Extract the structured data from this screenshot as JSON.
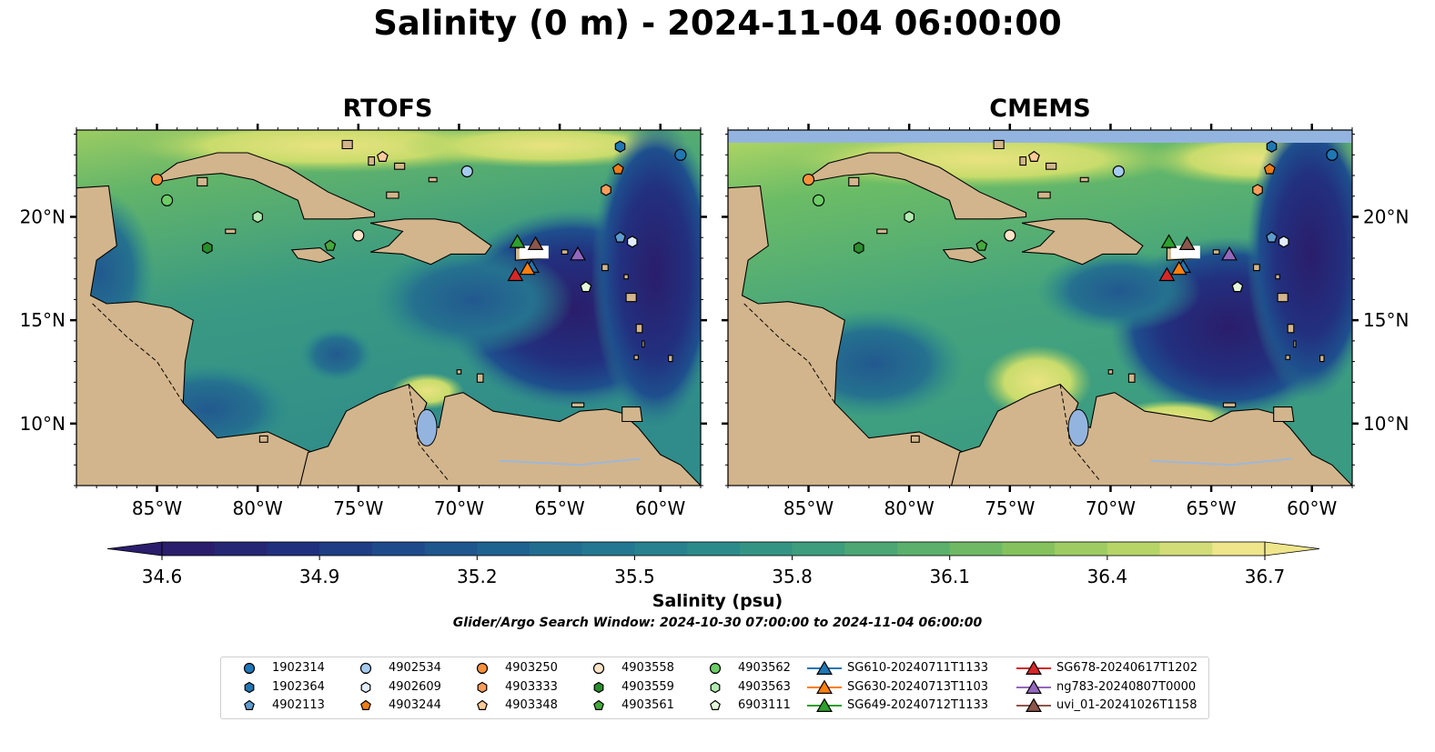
{
  "title": "Salinity (0 m) - 2024-11-04 06:00:00",
  "colorbar": {
    "label": "Salinity (psu)",
    "ticks": [
      "34.6",
      "34.9",
      "35.2",
      "35.5",
      "35.8",
      "36.1",
      "36.4",
      "36.7"
    ],
    "min": 34.6,
    "max": 36.7,
    "levels": 21,
    "extend": "both",
    "colormap": [
      "#2a1d6b",
      "#20307e",
      "#1e4a8c",
      "#1e6290",
      "#237790",
      "#2b8b8b",
      "#3d9d7d",
      "#5bb06b",
      "#85c25d",
      "#b6d566",
      "#efe58a"
    ]
  },
  "search_window": "Glider/Argo Search Window: 2024-10-30 07:00:00 to 2024-11-04 06:00:00",
  "colors": {
    "land": "#d2b58c",
    "lake": "#94b4e0",
    "river": "#9fb7d6",
    "no_data_band": "#94b4e0",
    "high_salinity": "#efe58a",
    "low_salinity": "#2a1d6b"
  },
  "chart_data": [
    {
      "type": "heatmap",
      "title": "RTOFS",
      "variable": "Sea surface salinity (psu)",
      "x_ticks": [
        "85°W",
        "80°W",
        "75°W",
        "70°W",
        "65°W",
        "60°W"
      ],
      "y_ticks": [
        "10°N",
        "15°N",
        "20°N"
      ],
      "xlim": [
        -89,
        -58
      ],
      "ylim": [
        7,
        24.2
      ],
      "ticks_right": false
    },
    {
      "type": "heatmap",
      "title": "CMEMS",
      "variable": "Sea surface salinity (psu)",
      "x_ticks": [
        "85°W",
        "80°W",
        "75°W",
        "70°W",
        "65°W",
        "60°W"
      ],
      "y_ticks": [
        "10°N",
        "15°N",
        "20°N"
      ],
      "xlim": [
        -89,
        -58
      ],
      "ylim": [
        7,
        24.2
      ],
      "ticks_right": true
    }
  ],
  "platforms": [
    {
      "id": "1902314",
      "marker": "circle",
      "color": "#1f77b4",
      "lon": -59.0,
      "lat": 23.0
    },
    {
      "id": "1902364",
      "marker": "hexagon",
      "color": "#1f77b4",
      "lon": -62.0,
      "lat": 23.4
    },
    {
      "id": "4902113",
      "marker": "pentagon",
      "color": "#5f9bd0",
      "lon": -62.0,
      "lat": 19.0
    },
    {
      "id": "4902534",
      "marker": "circle",
      "color": "#a6cbef",
      "lon": -69.6,
      "lat": 22.2
    },
    {
      "id": "4902609",
      "marker": "hexagon",
      "color": "#e2eefb",
      "lon": -61.4,
      "lat": 18.8
    },
    {
      "id": "4903244",
      "marker": "pentagon",
      "color": "#f07c16",
      "lon": -62.1,
      "lat": 22.3
    },
    {
      "id": "4903250",
      "marker": "circle",
      "color": "#f8913b",
      "lon": -85.0,
      "lat": 21.8
    },
    {
      "id": "4903333",
      "marker": "hexagon",
      "color": "#fa9d5b",
      "lon": -62.7,
      "lat": 21.3
    },
    {
      "id": "4903348",
      "marker": "pentagon",
      "color": "#fccb98",
      "lon": -73.8,
      "lat": 22.9
    },
    {
      "id": "4903558",
      "marker": "circle",
      "color": "#fde3c7",
      "lon": -75.0,
      "lat": 19.1
    },
    {
      "id": "4903559",
      "marker": "hexagon",
      "color": "#2a8c2c",
      "lon": -82.5,
      "lat": 18.5
    },
    {
      "id": "4903561",
      "marker": "pentagon",
      "color": "#45a83c",
      "lon": -76.4,
      "lat": 18.6
    },
    {
      "id": "4903562",
      "marker": "circle",
      "color": "#6dcc66",
      "lon": -84.5,
      "lat": 20.8
    },
    {
      "id": "4903563",
      "marker": "hexagon",
      "color": "#b1ebb0",
      "lon": -80.0,
      "lat": 20.0
    },
    {
      "id": "6903111",
      "marker": "pentagon",
      "color": "#e5f9d9",
      "lon": -63.7,
      "lat": 16.6
    },
    {
      "id": "SG610-20240711T1133",
      "marker": "triangle",
      "color": "#1f77b4",
      "line": true,
      "lon": -66.4,
      "lat": 17.6
    },
    {
      "id": "SG630-20240713T1103",
      "marker": "triangle",
      "color": "#ff7f0e",
      "line": true,
      "lon": -66.6,
      "lat": 17.5
    },
    {
      "id": "SG649-20240712T1133",
      "marker": "triangle",
      "color": "#2ca02c",
      "line": true,
      "lon": -67.1,
      "lat": 18.8
    },
    {
      "id": "SG678-20240617T1202",
      "marker": "triangle",
      "color": "#d62728",
      "line": true,
      "lon": -67.2,
      "lat": 17.2
    },
    {
      "id": "ng783-20240807T0000",
      "marker": "triangle",
      "color": "#9467bd",
      "line": true,
      "lon": -64.1,
      "lat": 18.2
    },
    {
      "id": "uvi_01-20241026T1158",
      "marker": "triangle",
      "color": "#8c564b",
      "line": true,
      "lon": -66.2,
      "lat": 18.7
    }
  ]
}
